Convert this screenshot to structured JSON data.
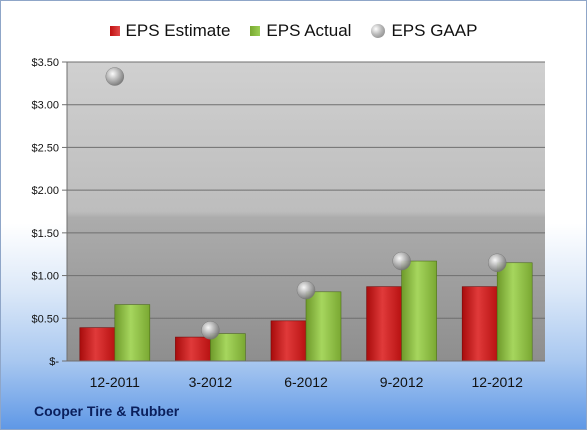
{
  "company": "Cooper Tire & Rubber",
  "colors": {
    "estimate": "#c41818",
    "actual": "#86b63a",
    "gaap": "#9a9a9a"
  },
  "chart_data": {
    "type": "bar",
    "categories": [
      "12-2011",
      "3-2012",
      "6-2012",
      "9-2012",
      "12-2012"
    ],
    "series": [
      {
        "name": "EPS Estimate",
        "kind": "bar",
        "values": [
          0.39,
          0.28,
          0.47,
          0.87,
          0.87
        ]
      },
      {
        "name": "EPS Actual",
        "kind": "bar",
        "values": [
          0.66,
          0.32,
          0.81,
          1.17,
          1.15
        ]
      },
      {
        "name": "EPS GAAP",
        "kind": "point",
        "values": [
          3.33,
          0.36,
          0.83,
          1.17,
          1.15
        ]
      }
    ],
    "y_ticks": [
      0,
      0.5,
      1.0,
      1.5,
      2.0,
      2.5,
      3.0,
      3.5
    ],
    "y_tick_labels": [
      "$-",
      "$0.50",
      "$1.00",
      "$1.50",
      "$2.00",
      "$2.50",
      "$3.00",
      "$3.50"
    ],
    "ylim": [
      0,
      3.5
    ],
    "grid": true,
    "legend_position": "top"
  }
}
